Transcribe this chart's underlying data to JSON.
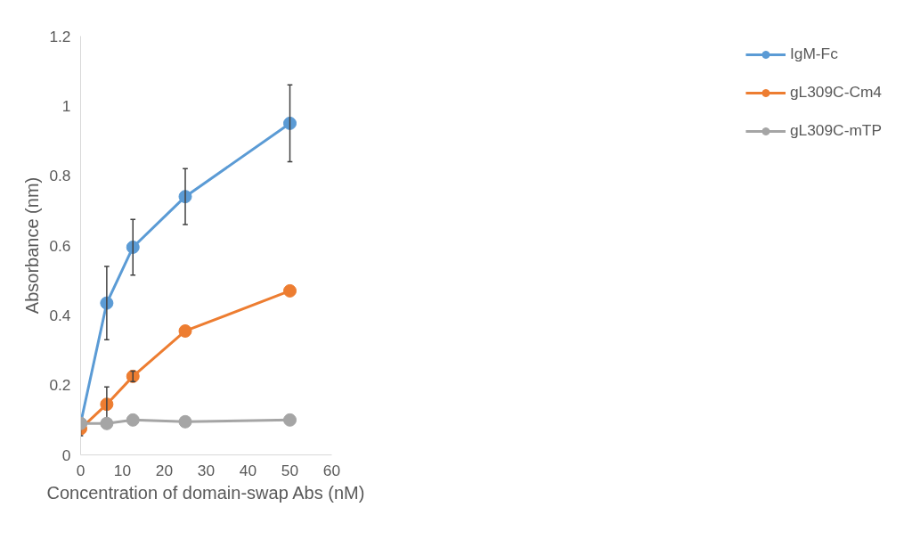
{
  "chart_data": {
    "type": "line",
    "xlabel": "Concentration of domain-swap Abs (nM)",
    "ylabel": "Absorbance (nm)",
    "x": [
      0,
      6.25,
      12.5,
      25,
      50
    ],
    "series": [
      {
        "name": "IgM-Fc",
        "color": "#5b9bd5",
        "values": [
          0.09,
          0.435,
          0.595,
          0.74,
          0.95
        ],
        "errors": [
          null,
          0.105,
          0.08,
          0.08,
          0.11
        ]
      },
      {
        "name": "gL309C-Cm4",
        "color": "#ed7d31",
        "values": [
          0.075,
          0.145,
          0.225,
          0.355,
          0.47
        ],
        "errors": [
          0.02,
          0.05,
          0.015,
          null,
          null
        ]
      },
      {
        "name": "gL309C-mTP",
        "color": "#a5a5a5",
        "values": [
          0.09,
          0.09,
          0.1,
          0.095,
          0.1
        ]
      }
    ],
    "xlim": [
      0,
      60
    ],
    "xticks": [
      0,
      10,
      20,
      30,
      40,
      50,
      60
    ],
    "ylim": [
      0,
      1.2
    ],
    "yticks": [
      0,
      0.2,
      0.4,
      0.6,
      0.8,
      1,
      1.2
    ],
    "grid": false,
    "legend": "right",
    "marker": "circle",
    "line_style": "solid"
  }
}
